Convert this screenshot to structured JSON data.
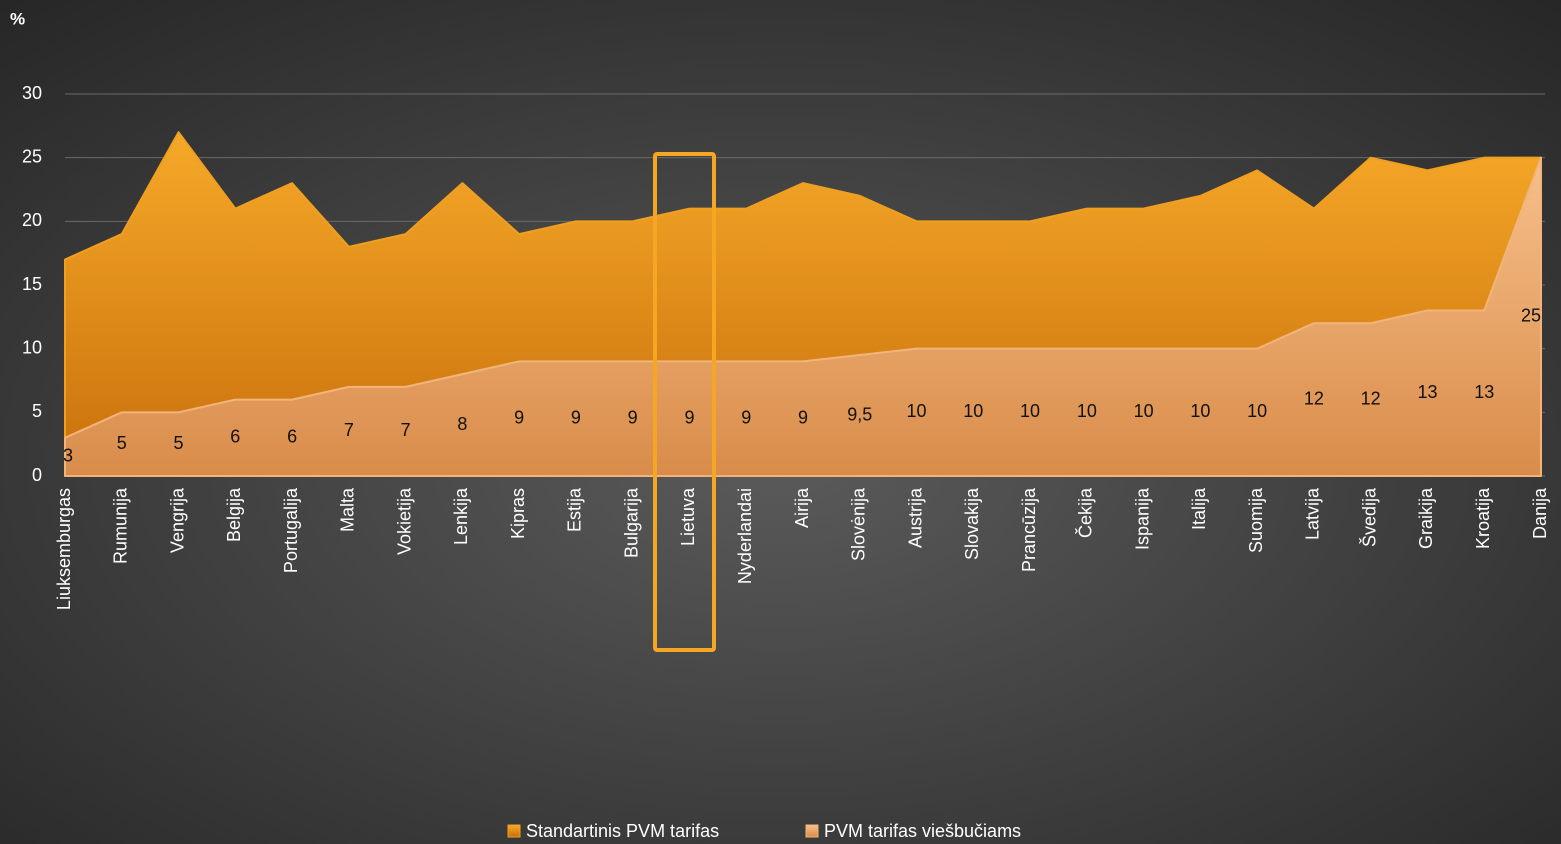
{
  "chart_data": {
    "type": "area",
    "y_label": "%",
    "categories": [
      "Liuksemburgas",
      "Rumunija",
      "Vengrija",
      "Belgija",
      "Portugalija",
      "Malta",
      "Vokietija",
      "Lenkija",
      "Kipras",
      "Estija",
      "Bulgarija",
      "Lietuva",
      "Nyderlandai",
      "Airija",
      "Slovėnija",
      "Austrija",
      "Slovakija",
      "Prancūzija",
      "Čekija",
      "Ispanija",
      "Italija",
      "Suomija",
      "Latvija",
      "Švedija",
      "Graikija",
      "Kroatija",
      "Danija"
    ],
    "series": [
      {
        "name": "Standartinis PVM tarifas",
        "color": "#f0a020",
        "values": [
          17,
          19,
          27,
          21,
          23,
          18,
          19,
          23,
          19,
          20,
          20,
          21,
          21,
          23,
          22,
          20,
          20,
          20,
          21,
          21,
          22,
          24,
          21,
          25,
          24,
          25,
          25
        ]
      },
      {
        "name": "PVM tarifas viešbučiams",
        "color": "#f2b47a",
        "values": [
          3,
          5,
          5,
          6,
          6,
          7,
          7,
          8,
          9,
          9,
          9,
          9,
          9,
          9,
          9.5,
          10,
          10,
          10,
          10,
          10,
          10,
          10,
          12,
          12,
          13,
          13,
          25
        ],
        "value_labels": [
          "3",
          "5",
          "5",
          "6",
          "6",
          "7",
          "7",
          "8",
          "9",
          "9",
          "9",
          "9",
          "9",
          "9",
          "9,5",
          "10",
          "10",
          "10",
          "10",
          "10",
          "10",
          "10",
          "12",
          "12",
          "13",
          "13",
          "25"
        ]
      }
    ],
    "ylim": [
      0,
      30
    ],
    "yticks": [
      0,
      5,
      10,
      15,
      20,
      25,
      30
    ],
    "grid": true
  }
}
